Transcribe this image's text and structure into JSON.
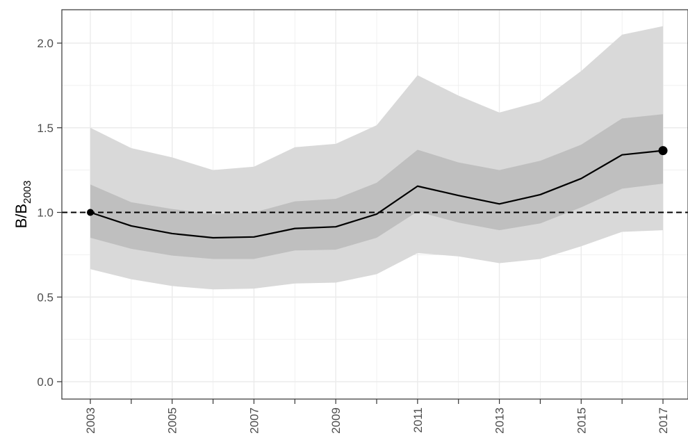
{
  "chart_data": {
    "type": "area",
    "title": "",
    "xlabel": "",
    "ylabel": "B/B",
    "ylabel_subscript": "2003",
    "x": [
      2003,
      2004,
      2005,
      2006,
      2007,
      2008,
      2009,
      2010,
      2011,
      2012,
      2013,
      2014,
      2015,
      2016,
      2017
    ],
    "x_ticks": [
      2003,
      2005,
      2007,
      2009,
      2011,
      2013,
      2015,
      2017
    ],
    "y_ticks": [
      0.0,
      0.5,
      1.0,
      1.5,
      2.0
    ],
    "y_tick_labels": [
      "0.0",
      "0.5",
      "1.0",
      "1.5",
      "2.0"
    ],
    "xlim": [
      2003,
      2017
    ],
    "ylim": [
      0,
      2.2
    ],
    "grid": true,
    "series": [
      {
        "role": "median",
        "values": [
          1.0,
          0.92,
          0.875,
          0.85,
          0.855,
          0.905,
          0.915,
          0.99,
          1.155,
          1.1,
          1.05,
          1.105,
          1.2,
          1.34,
          1.365
        ]
      },
      {
        "role": "inner-band-upper",
        "values": [
          1.165,
          1.06,
          1.02,
          0.99,
          1.0,
          1.065,
          1.08,
          1.175,
          1.37,
          1.295,
          1.25,
          1.305,
          1.4,
          1.555,
          1.58
        ]
      },
      {
        "role": "inner-band-lower",
        "values": [
          0.85,
          0.785,
          0.745,
          0.725,
          0.725,
          0.775,
          0.78,
          0.85,
          1.005,
          0.94,
          0.895,
          0.935,
          1.03,
          1.14,
          1.17
        ]
      },
      {
        "role": "outer-band-upper",
        "values": [
          1.5,
          1.38,
          1.325,
          1.25,
          1.27,
          1.385,
          1.405,
          1.515,
          1.81,
          1.69,
          1.59,
          1.655,
          1.835,
          2.05,
          2.1
        ]
      },
      {
        "role": "outer-band-lower",
        "values": [
          0.665,
          0.605,
          0.565,
          0.545,
          0.55,
          0.58,
          0.585,
          0.635,
          0.76,
          0.74,
          0.7,
          0.725,
          0.8,
          0.885,
          0.895
        ]
      }
    ],
    "reference_line": 1.0,
    "marked_points": [
      {
        "x": 2003,
        "y": 1.0
      },
      {
        "x": 2017,
        "y": 1.365
      }
    ],
    "colors": {
      "outer_band": "#d9d9d9",
      "inner_band": "#bfbfbf",
      "line": "#000000",
      "grid": "#ebebeb",
      "axis": "#333333",
      "tick_text": "#4d4d4d"
    }
  }
}
